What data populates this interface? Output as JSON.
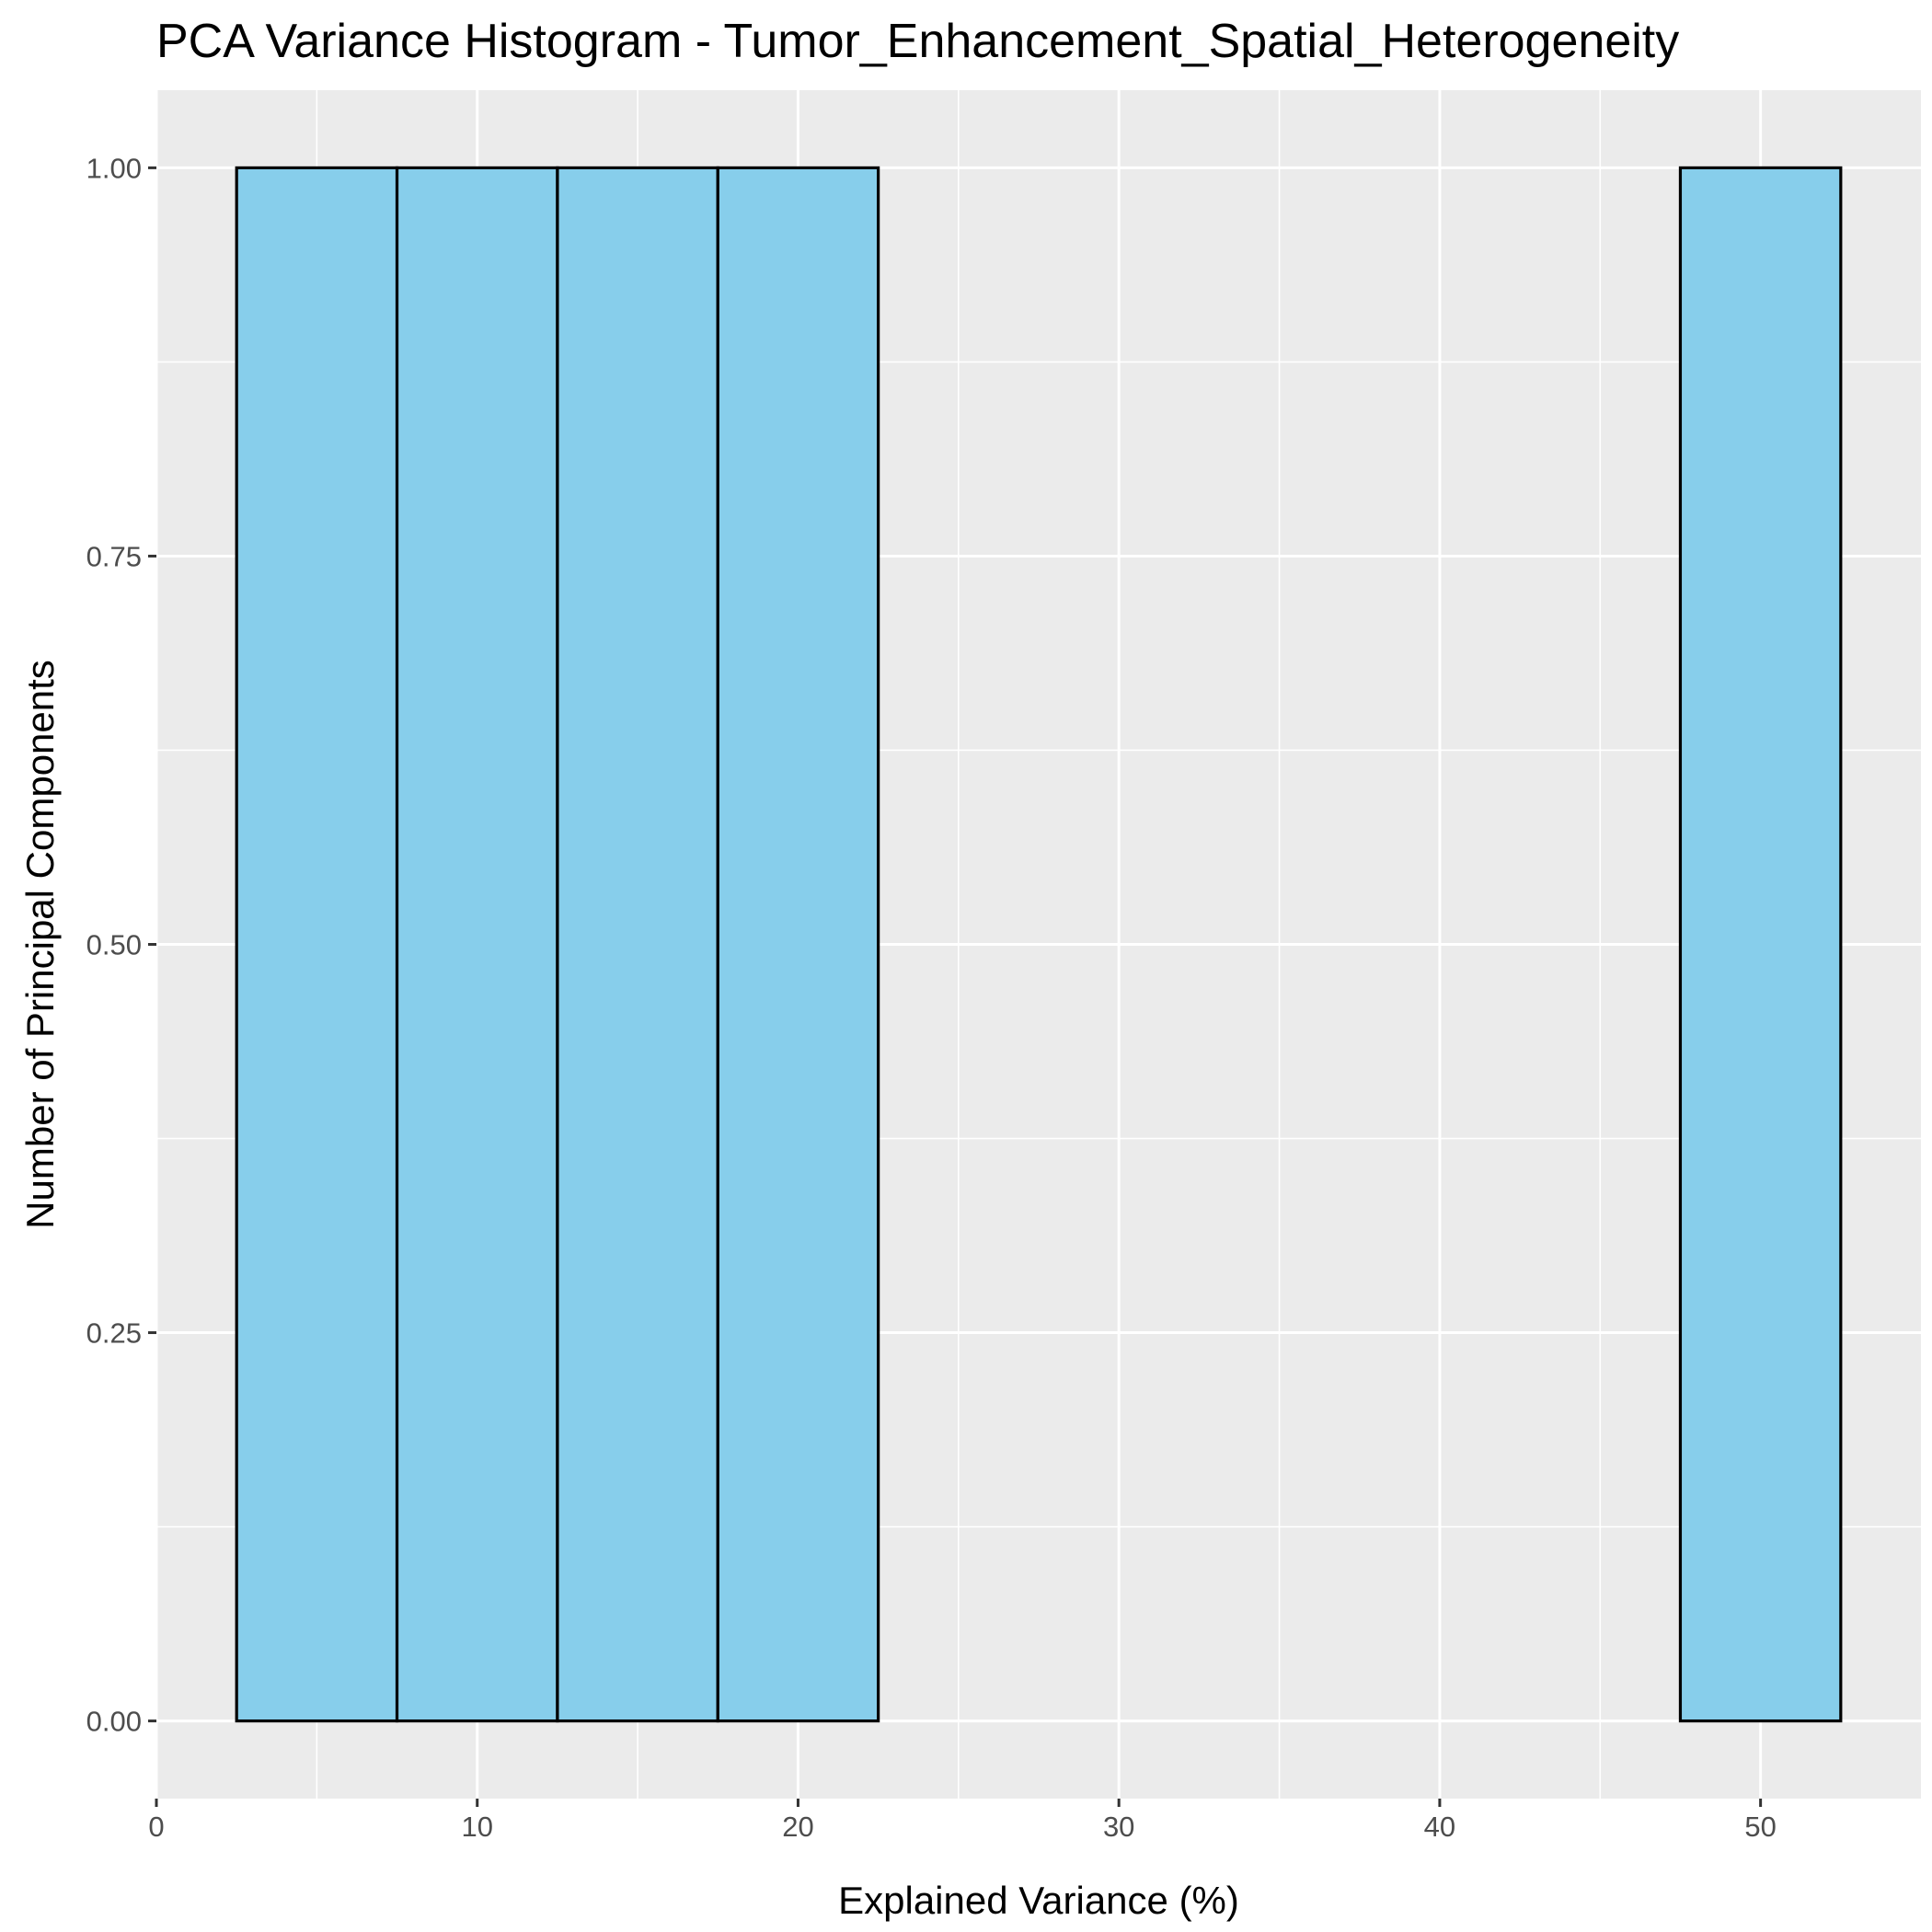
{
  "chart_data": {
    "type": "bar",
    "subtype": "histogram",
    "title": "PCA Variance Histogram - Tumor_Enhancement_Spatial_Heterogeneity",
    "xlabel": "Explained Variance (%)",
    "ylabel": "Number of Principal Components",
    "bin_width": 5,
    "bins": [
      {
        "x0": 2.5,
        "x1": 7.5,
        "count": 1
      },
      {
        "x0": 7.5,
        "x1": 12.5,
        "count": 1
      },
      {
        "x0": 12.5,
        "x1": 17.5,
        "count": 1
      },
      {
        "x0": 17.5,
        "x1": 22.5,
        "count": 1
      },
      {
        "x0": 22.5,
        "x1": 27.5,
        "count": 0
      },
      {
        "x0": 27.5,
        "x1": 32.5,
        "count": 0
      },
      {
        "x0": 32.5,
        "x1": 37.5,
        "count": 0
      },
      {
        "x0": 37.5,
        "x1": 42.5,
        "count": 0
      },
      {
        "x0": 42.5,
        "x1": 47.5,
        "count": 0
      },
      {
        "x0": 47.5,
        "x1": 52.5,
        "count": 1
      }
    ],
    "xlim": [
      0,
      55
    ],
    "ylim": [
      -0.05,
      1.05
    ],
    "x_ticks": [
      0,
      10,
      20,
      30,
      40,
      50
    ],
    "x_tick_labels": [
      "0",
      "10",
      "20",
      "30",
      "40",
      "50"
    ],
    "y_ticks": [
      0,
      0.25,
      0.5,
      0.75,
      1
    ],
    "y_tick_labels": [
      "0.00",
      "0.25",
      "0.50",
      "0.75",
      "1.00"
    ],
    "grid": true,
    "colors": {
      "bar_fill": "#87CEEB",
      "bar_outline": "#000000",
      "panel_background": "#EBEBEB",
      "grid": "#FFFFFF"
    }
  }
}
